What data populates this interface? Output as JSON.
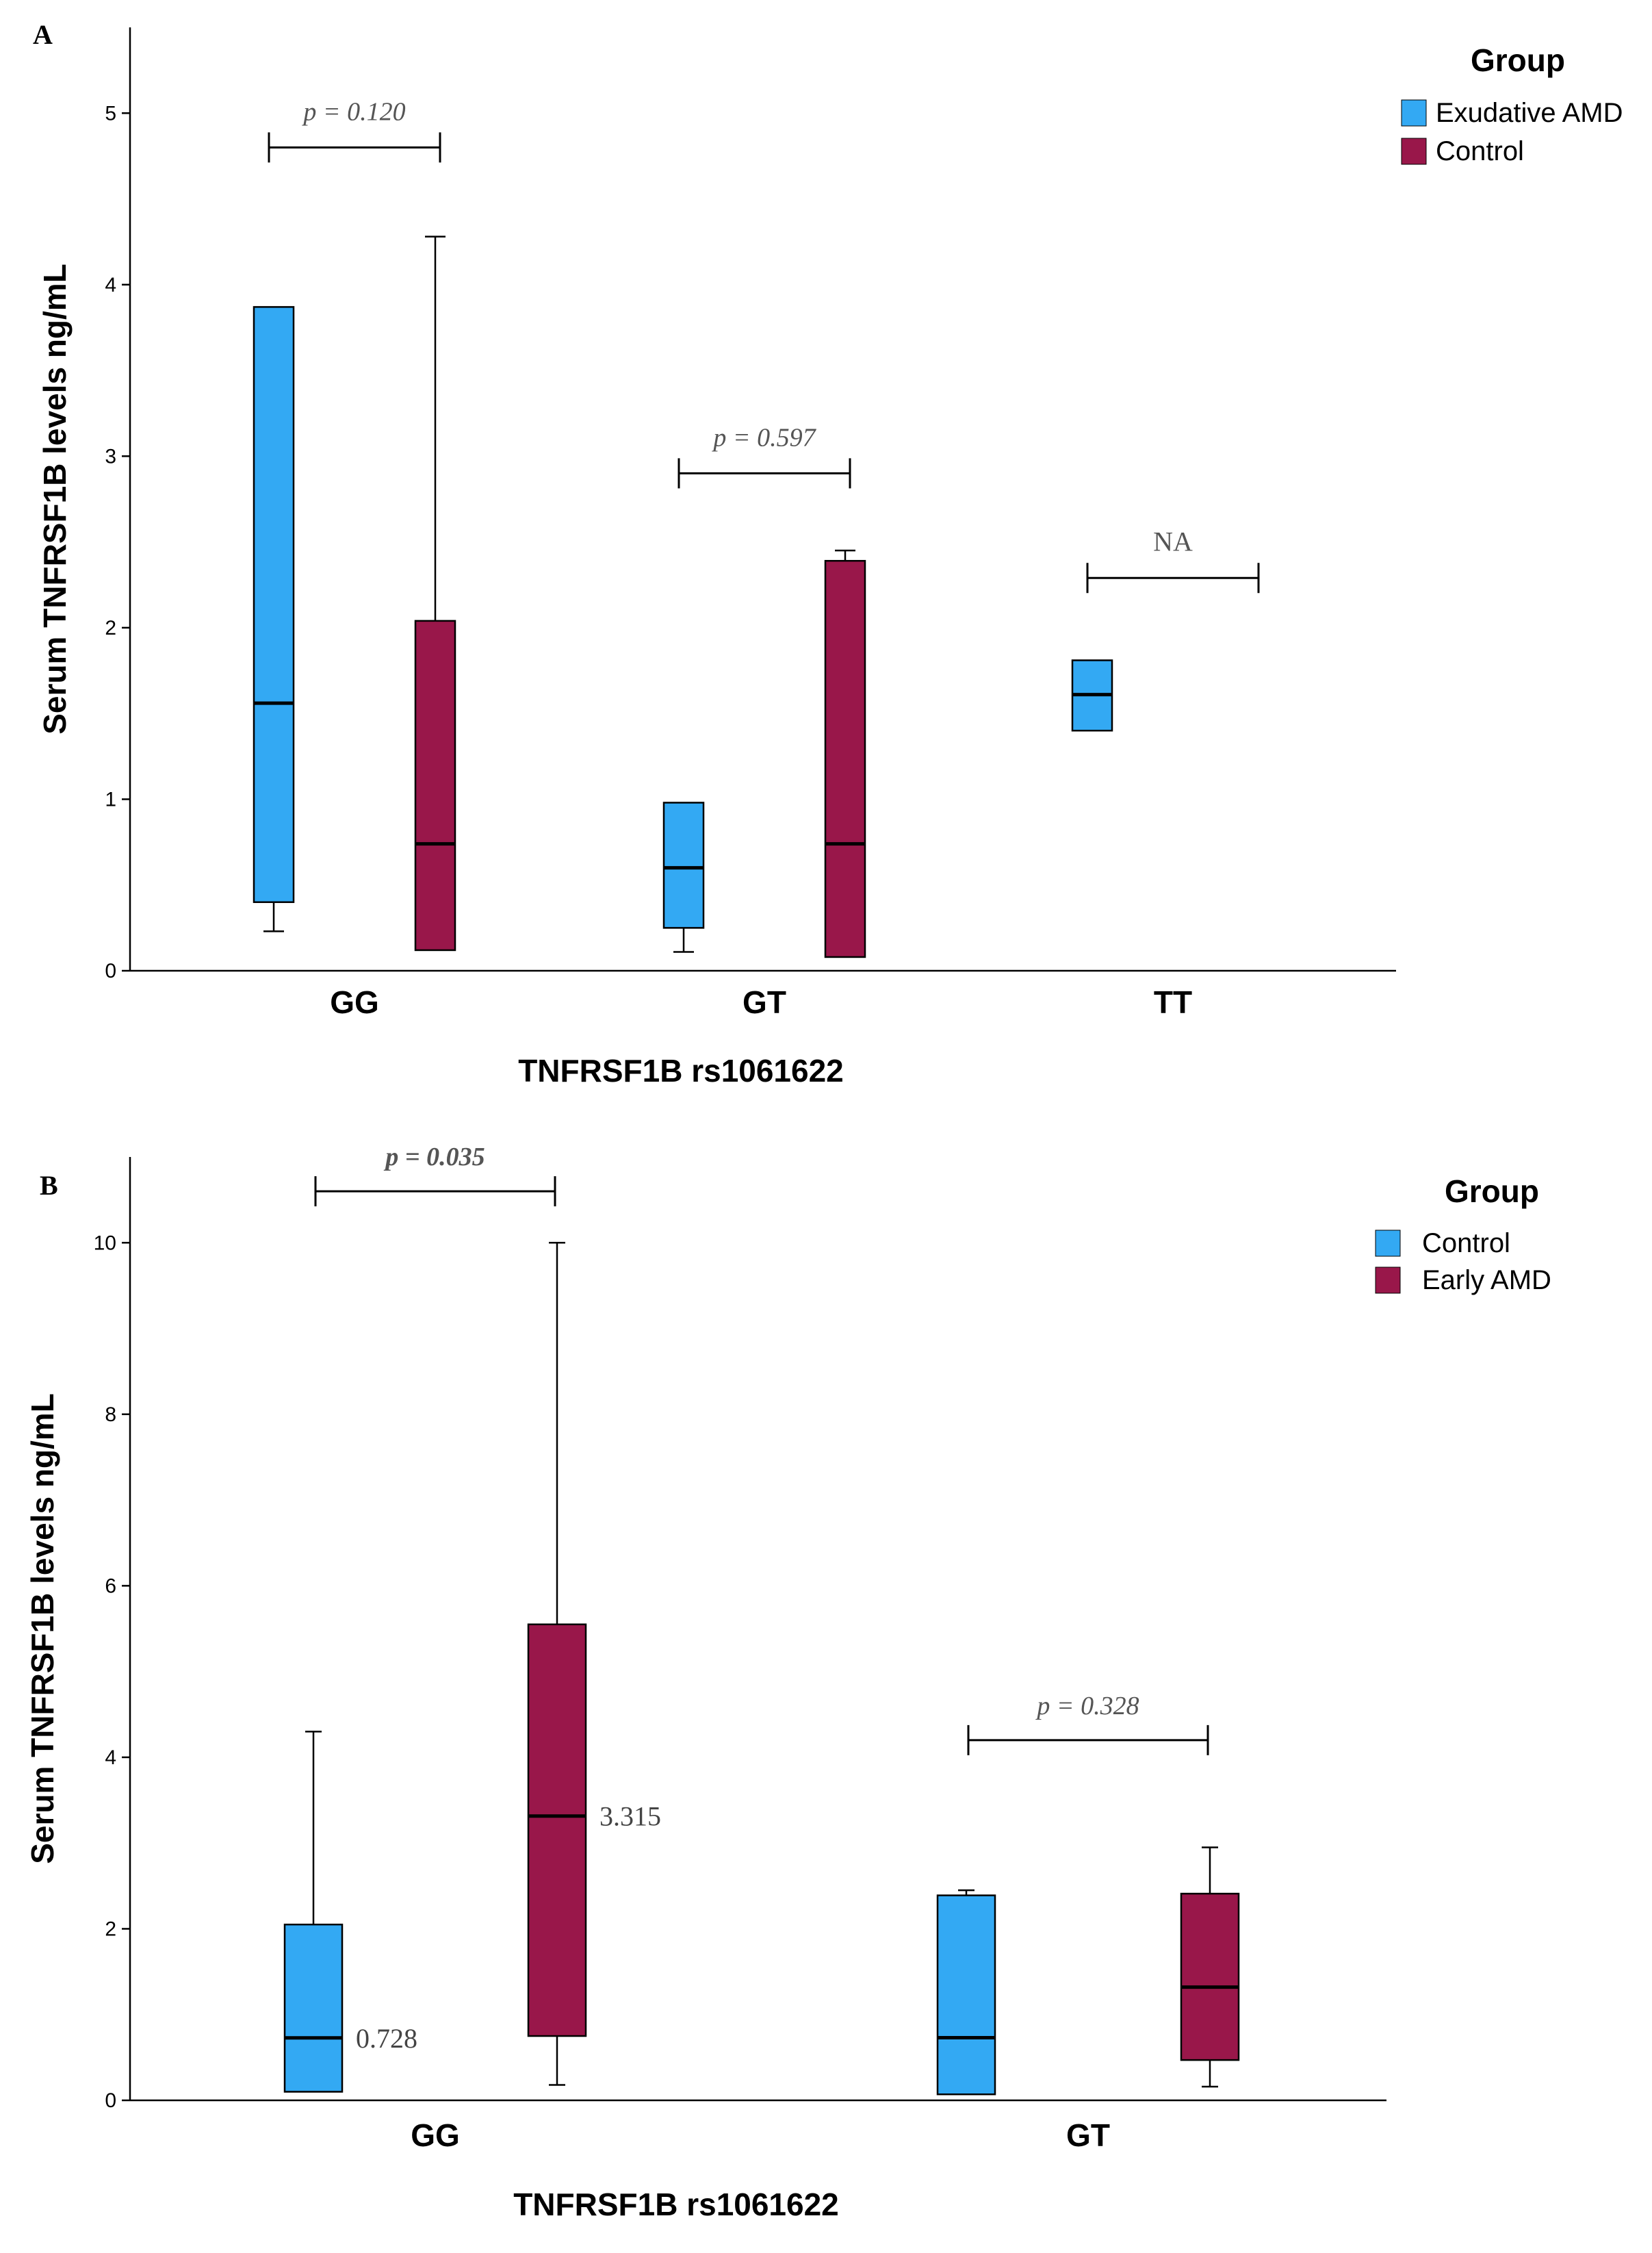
{
  "colors": {
    "blue": "#33a9f3",
    "red": "#99174a"
  },
  "chart_data": [
    {
      "type": "boxplot",
      "panel": "A",
      "title": "",
      "xlabel": "TNFRSF1B rs1061622",
      "ylabel": "Serum TNFRSF1B levels ng/mL",
      "ylim": [
        0,
        5.5
      ],
      "yticks": [
        "0",
        "1",
        "2",
        "3",
        "4",
        "5"
      ],
      "categories": [
        "GG",
        "GT",
        "TT"
      ],
      "legend_title": "Group",
      "legend_position": "top-right",
      "series": [
        {
          "name": "Exudative AMD",
          "color": "#33a9f3",
          "boxes": [
            {
              "category": "GG",
              "min": 0.23,
              "q1": 0.4,
              "median": 1.56,
              "q3": 3.87,
              "max": 3.87
            },
            {
              "category": "GT",
              "min": 0.11,
              "q1": 0.25,
              "median": 0.6,
              "q3": 0.98,
              "max": 0.98
            },
            {
              "category": "TT",
              "min": 1.4,
              "q1": 1.4,
              "median": 1.61,
              "q3": 1.81,
              "max": 1.81
            }
          ]
        },
        {
          "name": "Control",
          "color": "#99174a",
          "boxes": [
            {
              "category": "GG",
              "min": 0.12,
              "q1": 0.12,
              "median": 0.74,
              "q3": 2.04,
              "max": 4.28
            },
            {
              "category": "GT",
              "min": 0.08,
              "q1": 0.08,
              "median": 0.74,
              "q3": 2.39,
              "max": 2.45
            }
          ]
        }
      ],
      "annotations": [
        {
          "category": "GG",
          "text": "p = 0.120",
          "y": 4.8,
          "bold": false
        },
        {
          "category": "GT",
          "text": "p = 0.597",
          "y": 2.9,
          "bold": false
        },
        {
          "category": "TT",
          "text": "NA",
          "y": 2.29,
          "bold": false
        }
      ],
      "value_labels": []
    },
    {
      "type": "boxplot",
      "panel": "B",
      "title": "",
      "xlabel": "TNFRSF1B rs1061622",
      "ylabel": "Serum TNFRSF1B levels ng/mL",
      "ylim": [
        0,
        11
      ],
      "yticks": [
        "0",
        "2",
        "4",
        "6",
        "8",
        "10"
      ],
      "categories": [
        "GG",
        "GT"
      ],
      "legend_title": "Group",
      "legend_position": "top-right",
      "series": [
        {
          "name": "Control",
          "color": "#33a9f3",
          "boxes": [
            {
              "category": "GG",
              "min": 0.1,
              "q1": 0.1,
              "median": 0.728,
              "q3": 2.05,
              "max": 4.3
            },
            {
              "category": "GT",
              "min": 0.07,
              "q1": 0.07,
              "median": 0.73,
              "q3": 2.39,
              "max": 2.45
            }
          ]
        },
        {
          "name": "Early AMD",
          "color": "#99174a",
          "boxes": [
            {
              "category": "GG",
              "min": 0.18,
              "q1": 0.75,
              "median": 3.315,
              "q3": 5.55,
              "max": 10.0
            },
            {
              "category": "GT",
              "min": 0.16,
              "q1": 0.47,
              "median": 1.32,
              "q3": 2.41,
              "max": 2.95
            }
          ]
        }
      ],
      "annotations": [
        {
          "category": "GG",
          "text": "p = 0.035",
          "y": 10.6,
          "bold": true
        },
        {
          "category": "GT",
          "text": "p = 0.328",
          "y": 4.2,
          "bold": false
        }
      ],
      "value_labels": [
        {
          "category": "GG",
          "series": 0,
          "text": "0.728"
        },
        {
          "category": "GG",
          "series": 1,
          "text": "3.315"
        }
      ]
    }
  ]
}
